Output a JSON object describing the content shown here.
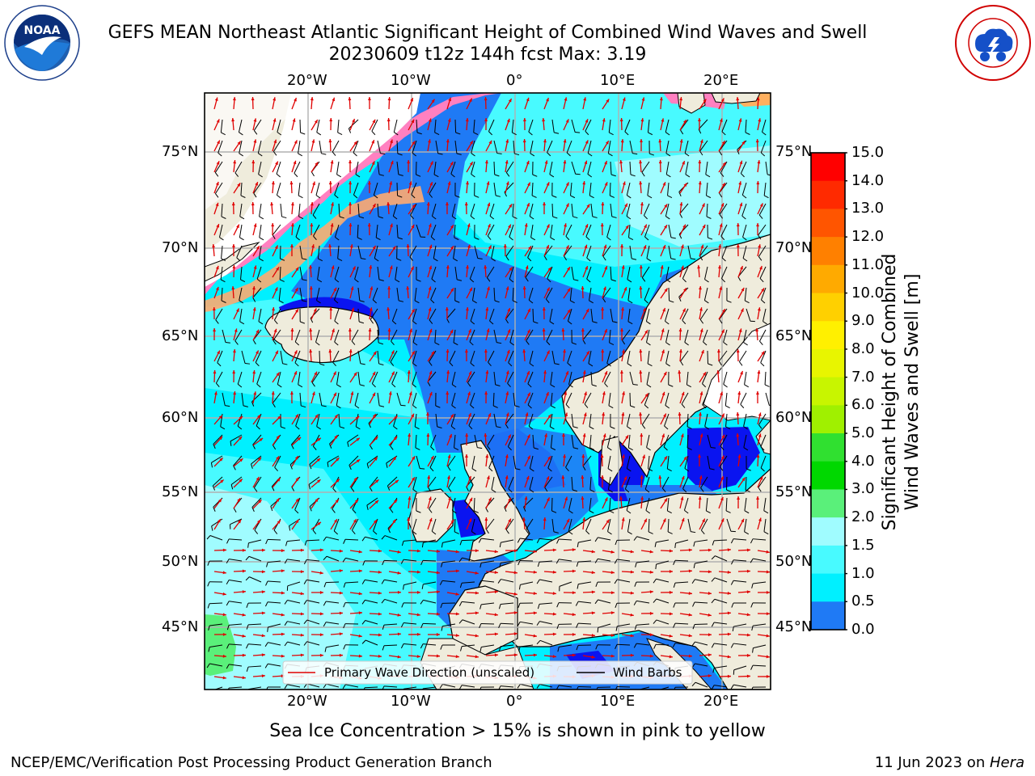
{
  "header": {
    "title_line1": "GEFS MEAN Northeast Atlantic Significant Height of Combined Wind Waves and Swell",
    "title_line2": "20230609 t12z 144h fcst   Max: 3.19"
  },
  "logos": {
    "left": {
      "text": "NOAA",
      "ring_text": "NATIONAL OCEANIC AND ATMOSPHERIC ADMINISTRATION · U.S. DEPARTMENT OF COMMERCE"
    },
    "right": {
      "ring_text": "NATIONAL WEATHER SERVICE"
    }
  },
  "map": {
    "lon_ticks": [
      "20°W",
      "10°W",
      "0°",
      "10°E",
      "20°E"
    ],
    "lat_ticks": [
      "75°N",
      "70°N",
      "65°N",
      "60°N",
      "55°N",
      "50°N",
      "45°N"
    ],
    "colors": {
      "land": "#efecdc",
      "ice_free_white": "#ffffff",
      "wave_0_05": "#0a14f0",
      "wave_05_1": "#1f7af5",
      "wave_1_15": "#00f0ff",
      "wave_15_2": "#48faff",
      "wave_2_3": "#a0fcff",
      "wave_3_4": "#5af07a",
      "ice": "#ff80c0",
      "grid": "#b0b0b0"
    },
    "legend": {
      "wave_label": "Primary Wave Direction (unscaled)",
      "wind_label": "Wind Barbs",
      "wave_color": "#e00000",
      "wind_color": "#000000"
    }
  },
  "colorbar": {
    "ticks": [
      "15.0",
      "14.0",
      "13.0",
      "12.0",
      "11.0",
      "10.0",
      "9.0",
      "8.0",
      "7.0",
      "6.0",
      "5.0",
      "4.0",
      "3.0",
      "2.0",
      "1.5",
      "1.0",
      "0.5",
      "0.0"
    ],
    "colors_top_to_bottom": [
      "#ff0000",
      "#ff2a00",
      "#ff5500",
      "#ff8000",
      "#ffaa00",
      "#ffd000",
      "#fff000",
      "#e8f500",
      "#c8f500",
      "#a0f000",
      "#30e030",
      "#00d800",
      "#5af07a",
      "#a0fcff",
      "#48faff",
      "#00f0ff",
      "#1f7af5",
      "#0a14f0"
    ],
    "label_line1": "Significant Height of Combined",
    "label_line2": "Wind Waves and Swell [m]"
  },
  "footer": {
    "caption": "Sea Ice Concentration > 15% is shown in pink to yellow",
    "left": "NCEP/EMC/Verification Post Processing Product Generation Branch",
    "right_prefix": "11 Jun 2023 on ",
    "right_host": "Hera"
  }
}
